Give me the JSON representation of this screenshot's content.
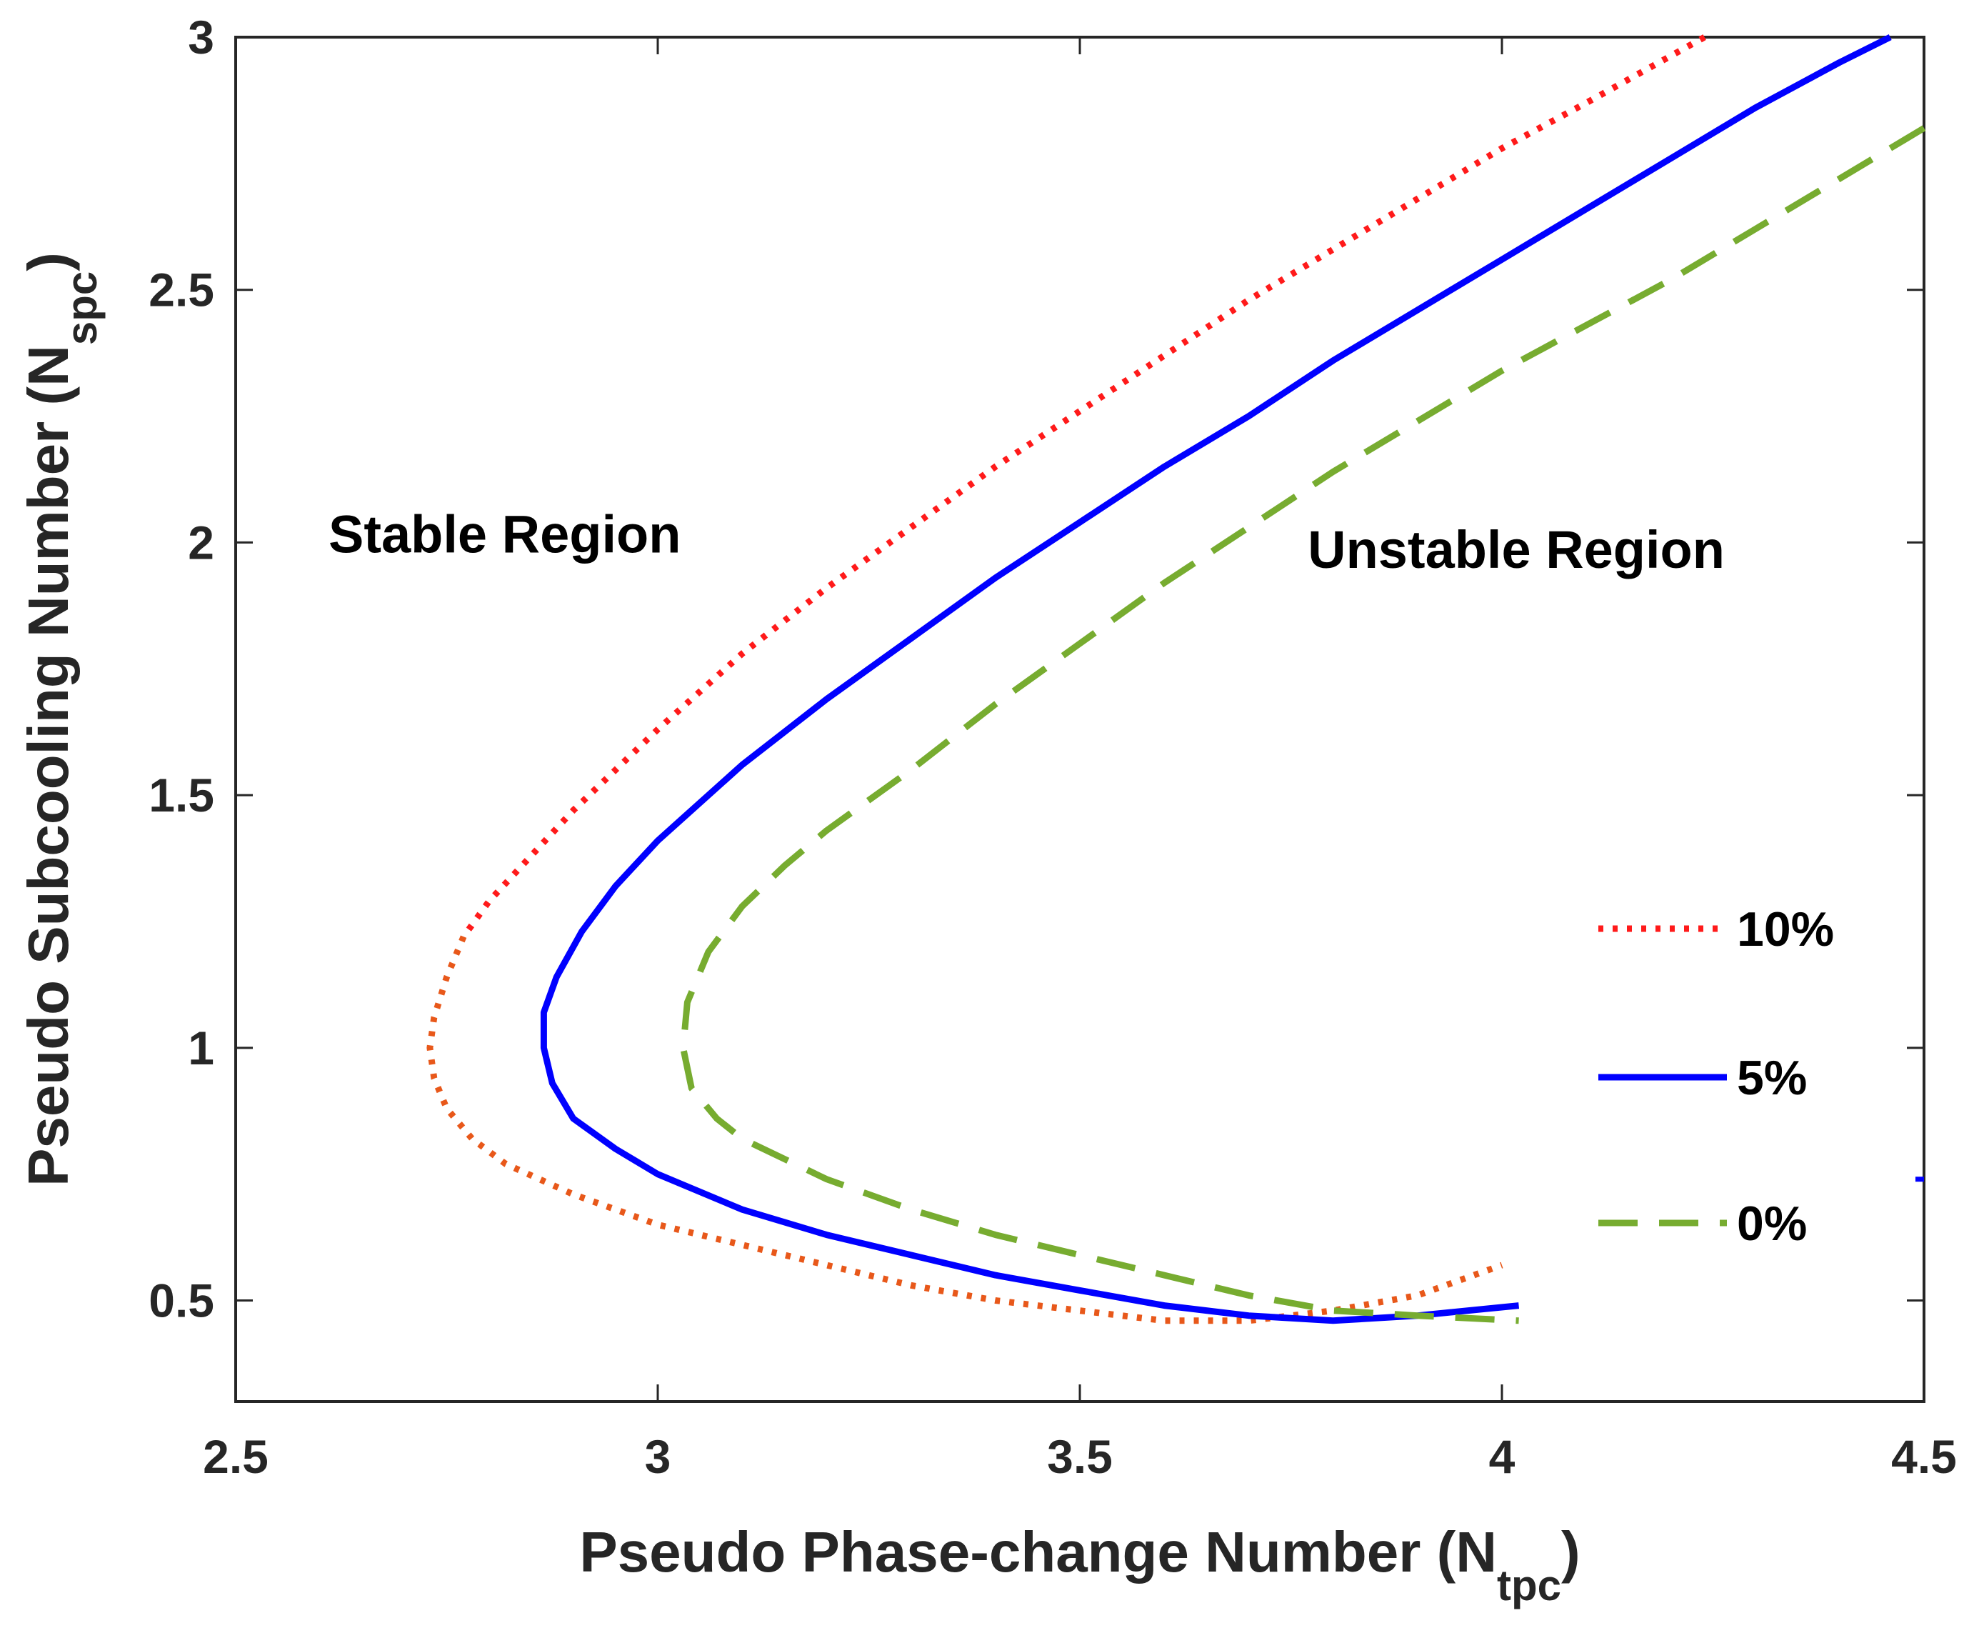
{
  "chart_data": {
    "type": "line",
    "title": "",
    "xlabel": {
      "main": "Pseudo Phase-change Number (N",
      "sub": "tpc",
      "close": ")"
    },
    "ylabel": {
      "main": "Pseudo Subcooling Number (N",
      "sub": "spc",
      "close": ")"
    },
    "xlim": [
      2.5,
      4.5
    ],
    "ylim": [
      0.3,
      3.0
    ],
    "xticks": [
      2.5,
      3,
      3.5,
      4,
      4.5
    ],
    "xtick_labels": [
      "2.5",
      "3",
      "3.5",
      "4",
      "4.5"
    ],
    "yticks": [
      0.5,
      1,
      1.5,
      2,
      2.5,
      3
    ],
    "ytick_labels": [
      "0.5",
      "1",
      "1.5",
      "2",
      "2.5",
      "3"
    ],
    "grid": false,
    "legend_position": "right",
    "annotations": [
      {
        "text": "Stable Region",
        "x": 2.61,
        "y": 1.98
      },
      {
        "text": "Unstable Region",
        "x": 3.77,
        "y": 1.95
      }
    ],
    "series": [
      {
        "name": "10%",
        "color": "#ff1a1a",
        "lower_color": "#e8581a",
        "style": "dotted",
        "points": [
          [
            4.24,
            3.0
          ],
          [
            4.1,
            2.87
          ],
          [
            4.0,
            2.78
          ],
          [
            3.9,
            2.68
          ],
          [
            3.8,
            2.58
          ],
          [
            3.7,
            2.48
          ],
          [
            3.6,
            2.37
          ],
          [
            3.5,
            2.26
          ],
          [
            3.4,
            2.15
          ],
          [
            3.3,
            2.03
          ],
          [
            3.2,
            1.91
          ],
          [
            3.1,
            1.78
          ],
          [
            3.0,
            1.63
          ],
          [
            2.95,
            1.55
          ],
          [
            2.9,
            1.47
          ],
          [
            2.85,
            1.38
          ],
          [
            2.8,
            1.29
          ],
          [
            2.77,
            1.22
          ],
          [
            2.75,
            1.14
          ],
          [
            2.735,
            1.06
          ],
          [
            2.73,
            1.0
          ],
          [
            2.735,
            0.94
          ],
          [
            2.75,
            0.88
          ],
          [
            2.78,
            0.82
          ],
          [
            2.82,
            0.77
          ],
          [
            2.9,
            0.71
          ],
          [
            3.0,
            0.65
          ],
          [
            3.1,
            0.61
          ],
          [
            3.2,
            0.57
          ],
          [
            3.3,
            0.53
          ],
          [
            3.4,
            0.5
          ],
          [
            3.5,
            0.48
          ],
          [
            3.6,
            0.46
          ],
          [
            3.7,
            0.46
          ],
          [
            3.8,
            0.48
          ],
          [
            3.9,
            0.51
          ],
          [
            4.0,
            0.57
          ]
        ]
      },
      {
        "name": "5%",
        "color": "#0000ff",
        "style": "solid",
        "points": [
          [
            4.46,
            3.0
          ],
          [
            4.4,
            2.95
          ],
          [
            4.3,
            2.86
          ],
          [
            4.2,
            2.76
          ],
          [
            4.1,
            2.66
          ],
          [
            4.0,
            2.56
          ],
          [
            3.9,
            2.46
          ],
          [
            3.8,
            2.36
          ],
          [
            3.7,
            2.25
          ],
          [
            3.6,
            2.15
          ],
          [
            3.5,
            2.04
          ],
          [
            3.4,
            1.93
          ],
          [
            3.3,
            1.81
          ],
          [
            3.2,
            1.69
          ],
          [
            3.1,
            1.56
          ],
          [
            3.0,
            1.41
          ],
          [
            2.95,
            1.32
          ],
          [
            2.91,
            1.23
          ],
          [
            2.88,
            1.14
          ],
          [
            2.865,
            1.07
          ],
          [
            2.865,
            1.0
          ],
          [
            2.875,
            0.93
          ],
          [
            2.9,
            0.86
          ],
          [
            2.95,
            0.8
          ],
          [
            3.0,
            0.75
          ],
          [
            3.1,
            0.68
          ],
          [
            3.2,
            0.63
          ],
          [
            3.3,
            0.59
          ],
          [
            3.4,
            0.55
          ],
          [
            3.5,
            0.52
          ],
          [
            3.6,
            0.49
          ],
          [
            3.7,
            0.47
          ],
          [
            3.8,
            0.46
          ],
          [
            3.9,
            0.47
          ],
          [
            4.02,
            0.49
          ]
        ]
      },
      {
        "name": "0%",
        "color": "#77ac30",
        "style": "dashed",
        "points": [
          [
            4.5,
            2.82
          ],
          [
            4.4,
            2.72
          ],
          [
            4.3,
            2.62
          ],
          [
            4.2,
            2.52
          ],
          [
            4.1,
            2.43
          ],
          [
            4.0,
            2.34
          ],
          [
            3.9,
            2.24
          ],
          [
            3.8,
            2.14
          ],
          [
            3.7,
            2.03
          ],
          [
            3.6,
            1.92
          ],
          [
            3.5,
            1.8
          ],
          [
            3.4,
            1.68
          ],
          [
            3.3,
            1.55
          ],
          [
            3.2,
            1.43
          ],
          [
            3.15,
            1.36
          ],
          [
            3.1,
            1.28
          ],
          [
            3.06,
            1.19
          ],
          [
            3.035,
            1.09
          ],
          [
            3.03,
            1.0
          ],
          [
            3.04,
            0.92
          ],
          [
            3.07,
            0.86
          ],
          [
            3.1,
            0.82
          ],
          [
            3.2,
            0.74
          ],
          [
            3.3,
            0.68
          ],
          [
            3.4,
            0.63
          ],
          [
            3.5,
            0.59
          ],
          [
            3.6,
            0.55
          ],
          [
            3.7,
            0.51
          ],
          [
            3.8,
            0.48
          ],
          [
            3.9,
            0.47
          ],
          [
            4.02,
            0.46
          ]
        ]
      }
    ],
    "edge_mark": {
      "x": 4.5,
      "y": 0.74,
      "color": "#0000ff"
    }
  }
}
